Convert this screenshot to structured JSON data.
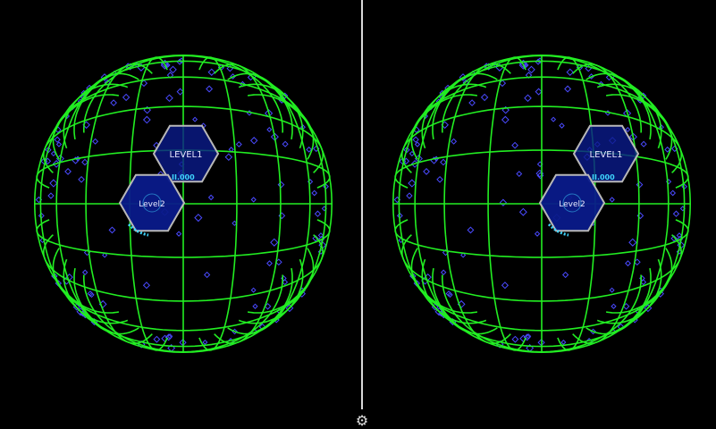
{
  "scene": {
    "grid_color": "#22ee22",
    "star_color": "#4a4aff",
    "hex_fill": "#0a1a8a",
    "hex_stroke": "#b8b8b8",
    "accent": "#3fd6ff",
    "levels": [
      {
        "label": "LEVEL1"
      },
      {
        "label": "Level2"
      }
    ],
    "indicator_text": "II.000"
  },
  "toolbar": {
    "settings_icon": "gear-icon"
  }
}
